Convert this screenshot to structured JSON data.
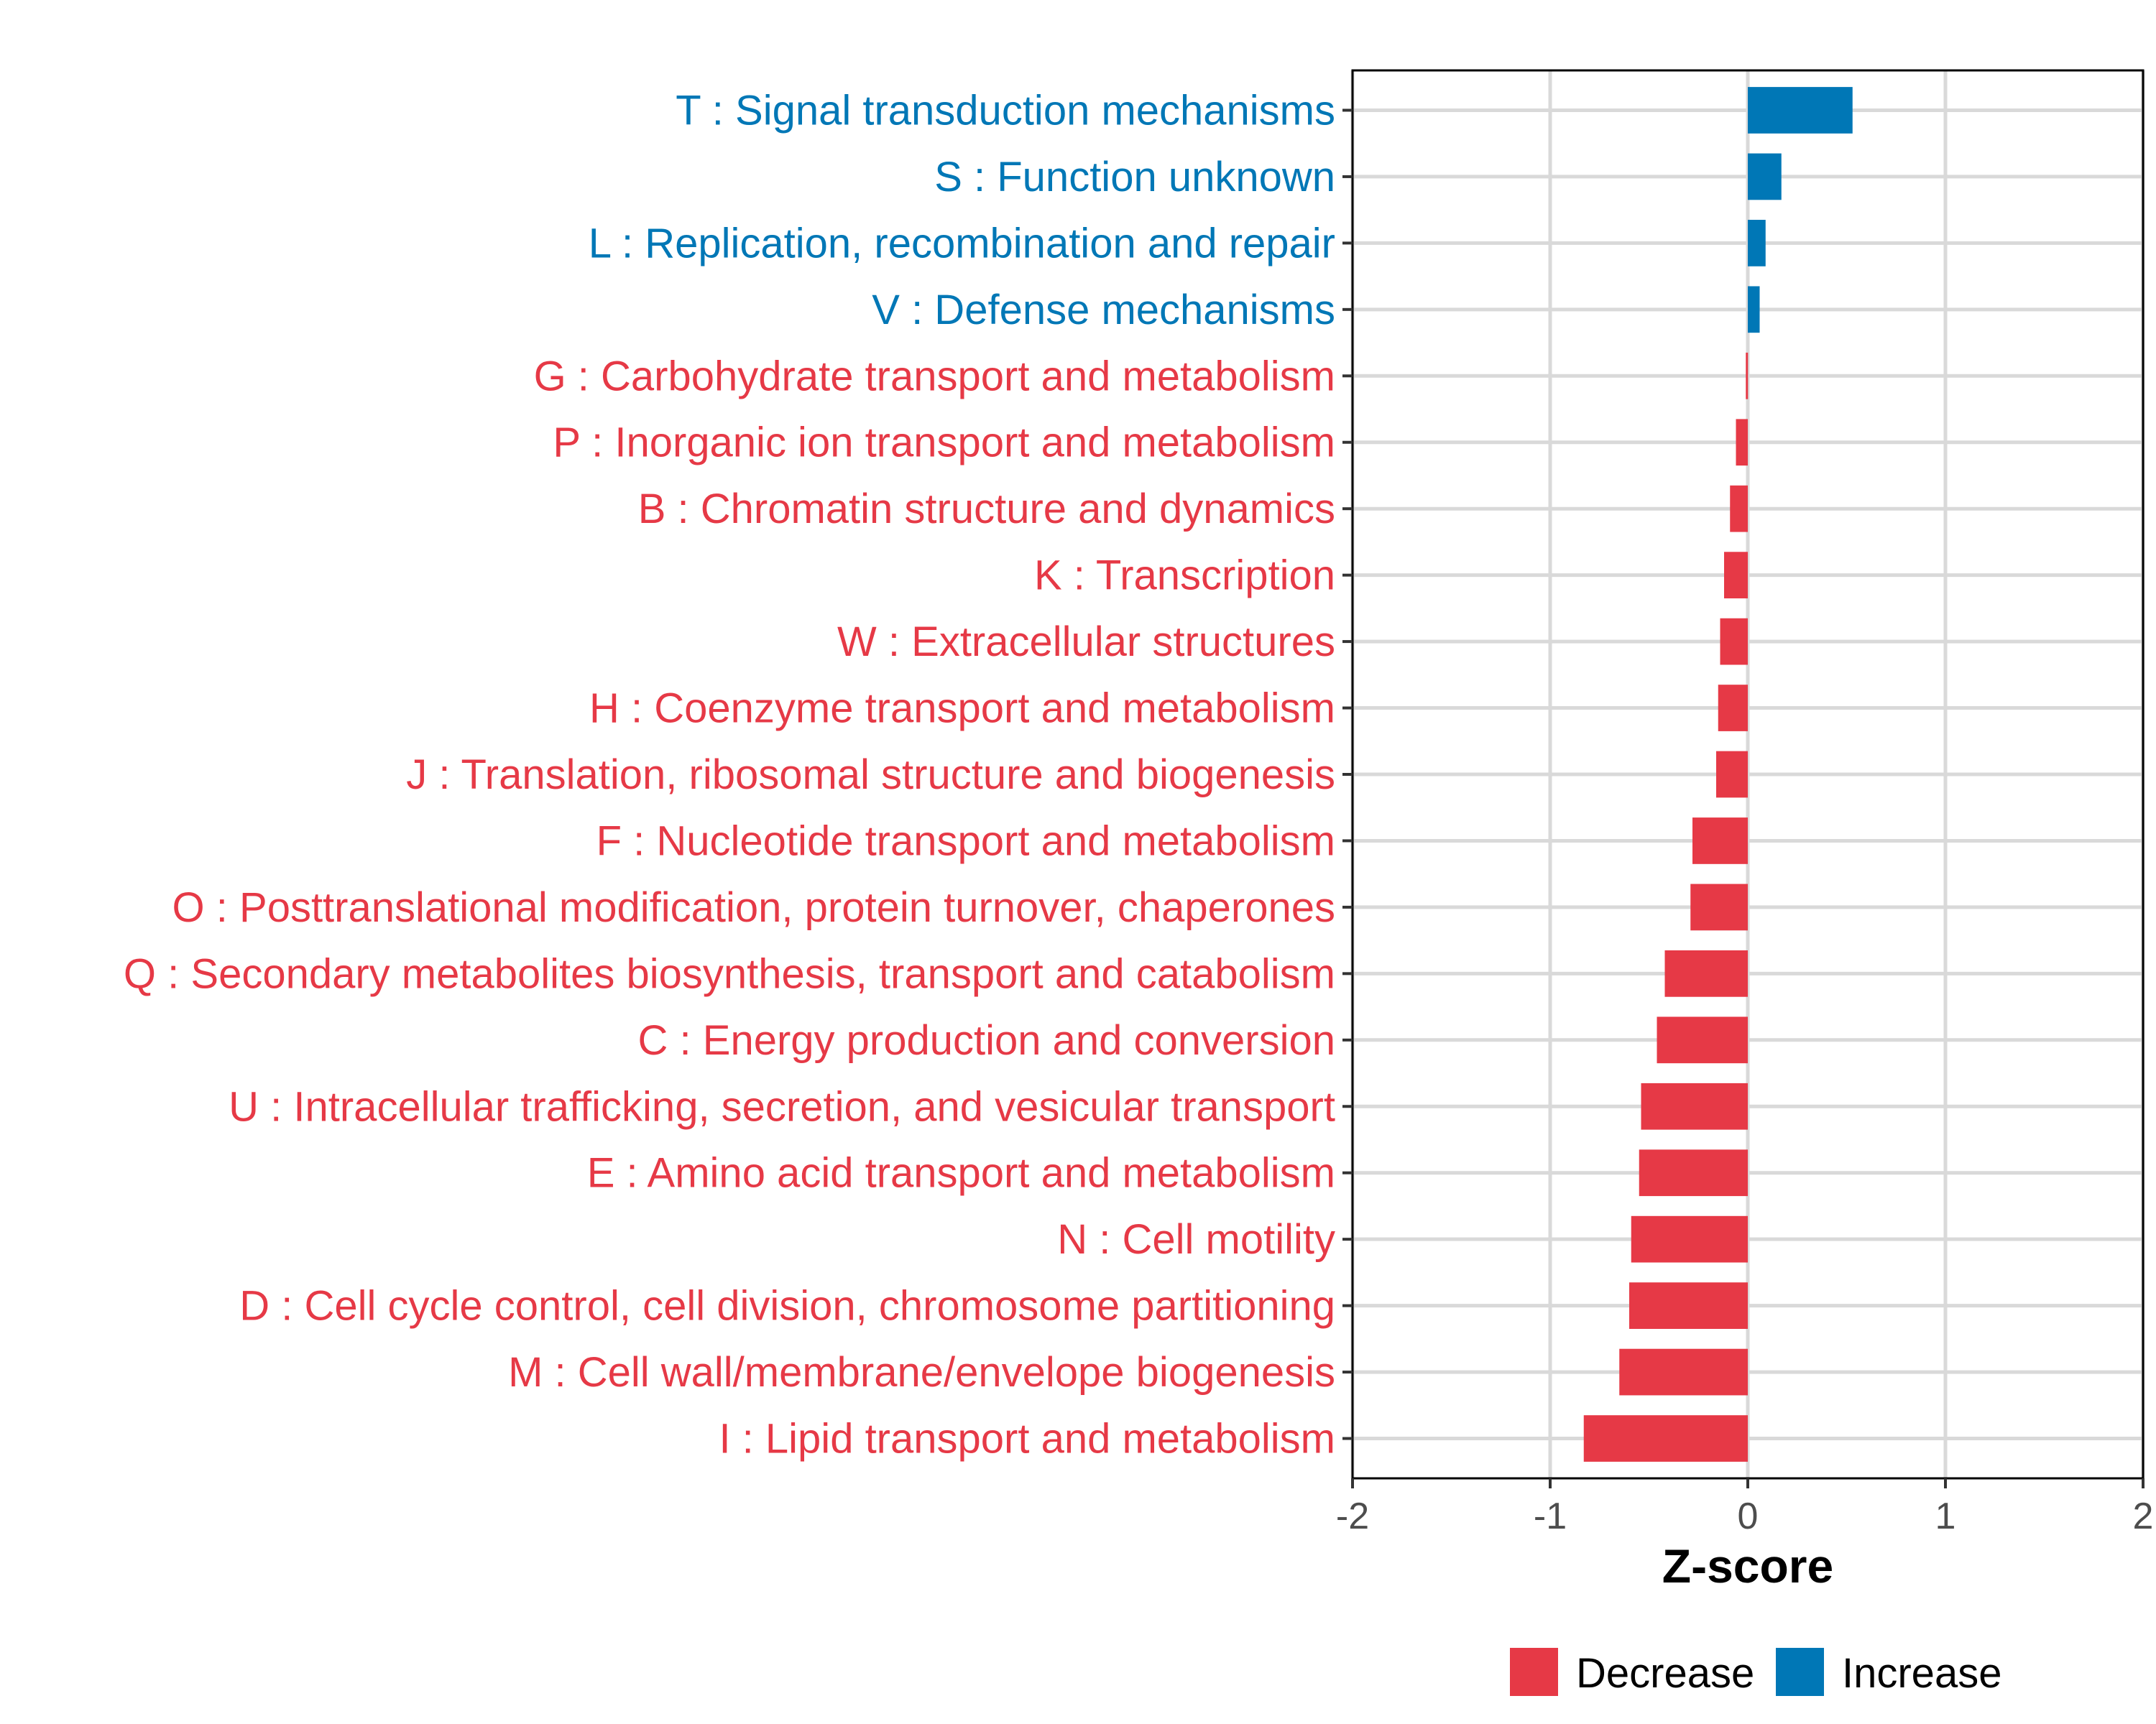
{
  "chart_data": {
    "type": "bar",
    "orientation": "horizontal",
    "xlabel": "Z-score",
    "ylabel": "",
    "xlim": [
      -2,
      2
    ],
    "xticks": [
      "-2",
      "-1",
      "0",
      "1",
      "2"
    ],
    "xtick_values": [
      -2,
      -1,
      0,
      1,
      2
    ],
    "categories": [
      "T : Signal transduction mechanisms",
      "S : Function unknown",
      "L : Replication, recombination and repair",
      "V : Defense mechanisms",
      "G : Carbohydrate transport and metabolism",
      "P : Inorganic ion transport and metabolism",
      "B : Chromatin structure and dynamics",
      "K : Transcription",
      "W : Extracellular structures",
      "H : Coenzyme transport and metabolism",
      "J : Translation, ribosomal structure and biogenesis",
      "F : Nucleotide transport and metabolism",
      "O : Posttranslational modification, protein turnover, chaperones",
      "Q : Secondary metabolites biosynthesis, transport and catabolism",
      "C : Energy production and conversion",
      "U : Intracellular trafficking, secretion, and vesicular transport",
      "E : Amino acid transport and metabolism",
      "N : Cell motility",
      "D : Cell cycle control, cell division, chromosome partitioning",
      "M : Cell wall/membrane/envelope biogenesis",
      "I : Lipid transport and metabolism"
    ],
    "values": [
      0.53,
      0.17,
      0.09,
      0.06,
      -0.01,
      -0.06,
      -0.09,
      -0.12,
      -0.14,
      -0.15,
      -0.16,
      -0.28,
      -0.29,
      -0.42,
      -0.46,
      -0.54,
      -0.55,
      -0.59,
      -0.6,
      -0.65,
      -0.83
    ],
    "groups": [
      "Increase",
      "Increase",
      "Increase",
      "Increase",
      "Decrease",
      "Decrease",
      "Decrease",
      "Decrease",
      "Decrease",
      "Decrease",
      "Decrease",
      "Decrease",
      "Decrease",
      "Decrease",
      "Decrease",
      "Decrease",
      "Decrease",
      "Decrease",
      "Decrease",
      "Decrease",
      "Decrease"
    ],
    "legend": {
      "placement": "bottom-right",
      "entries": [
        {
          "label": "Decrease",
          "color": "#e63946"
        },
        {
          "label": "Increase",
          "color": "#0077b6"
        }
      ]
    },
    "colors": {
      "Decrease": "#e63946",
      "Increase": "#0077b6"
    },
    "grid": true
  }
}
